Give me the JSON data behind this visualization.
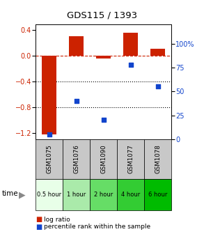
{
  "title": "GDS115 / 1393",
  "samples": [
    "GSM1075",
    "GSM1076",
    "GSM1090",
    "GSM1077",
    "GSM1078"
  ],
  "time_labels": [
    "0.5 hour",
    "1 hour",
    "2 hour",
    "4 hour",
    "6 hour"
  ],
  "log_ratio": [
    -1.22,
    0.3,
    -0.05,
    0.35,
    0.1
  ],
  "percentile": [
    5,
    40,
    20,
    78,
    55
  ],
  "bar_color": "#cc2200",
  "dot_color": "#1144cc",
  "ylim_left": [
    -1.3,
    0.48
  ],
  "ylim_right": [
    0,
    120
  ],
  "yticks_left": [
    0.4,
    0.0,
    -0.4,
    -0.8,
    -1.2
  ],
  "yticks_right": [
    100,
    75,
    50,
    25,
    0
  ],
  "ytick_labels_right": [
    "100%",
    "75",
    "50",
    "25",
    "0"
  ],
  "time_colors": [
    "#e8ffe8",
    "#aaeaaa",
    "#66dd66",
    "#33cc33",
    "#00bb00"
  ],
  "sample_cell_color": "#c8c8c8",
  "legend_log_ratio": "log ratio",
  "legend_percentile": "percentile rank within the sample",
  "time_label": "time",
  "bar_width": 0.55
}
